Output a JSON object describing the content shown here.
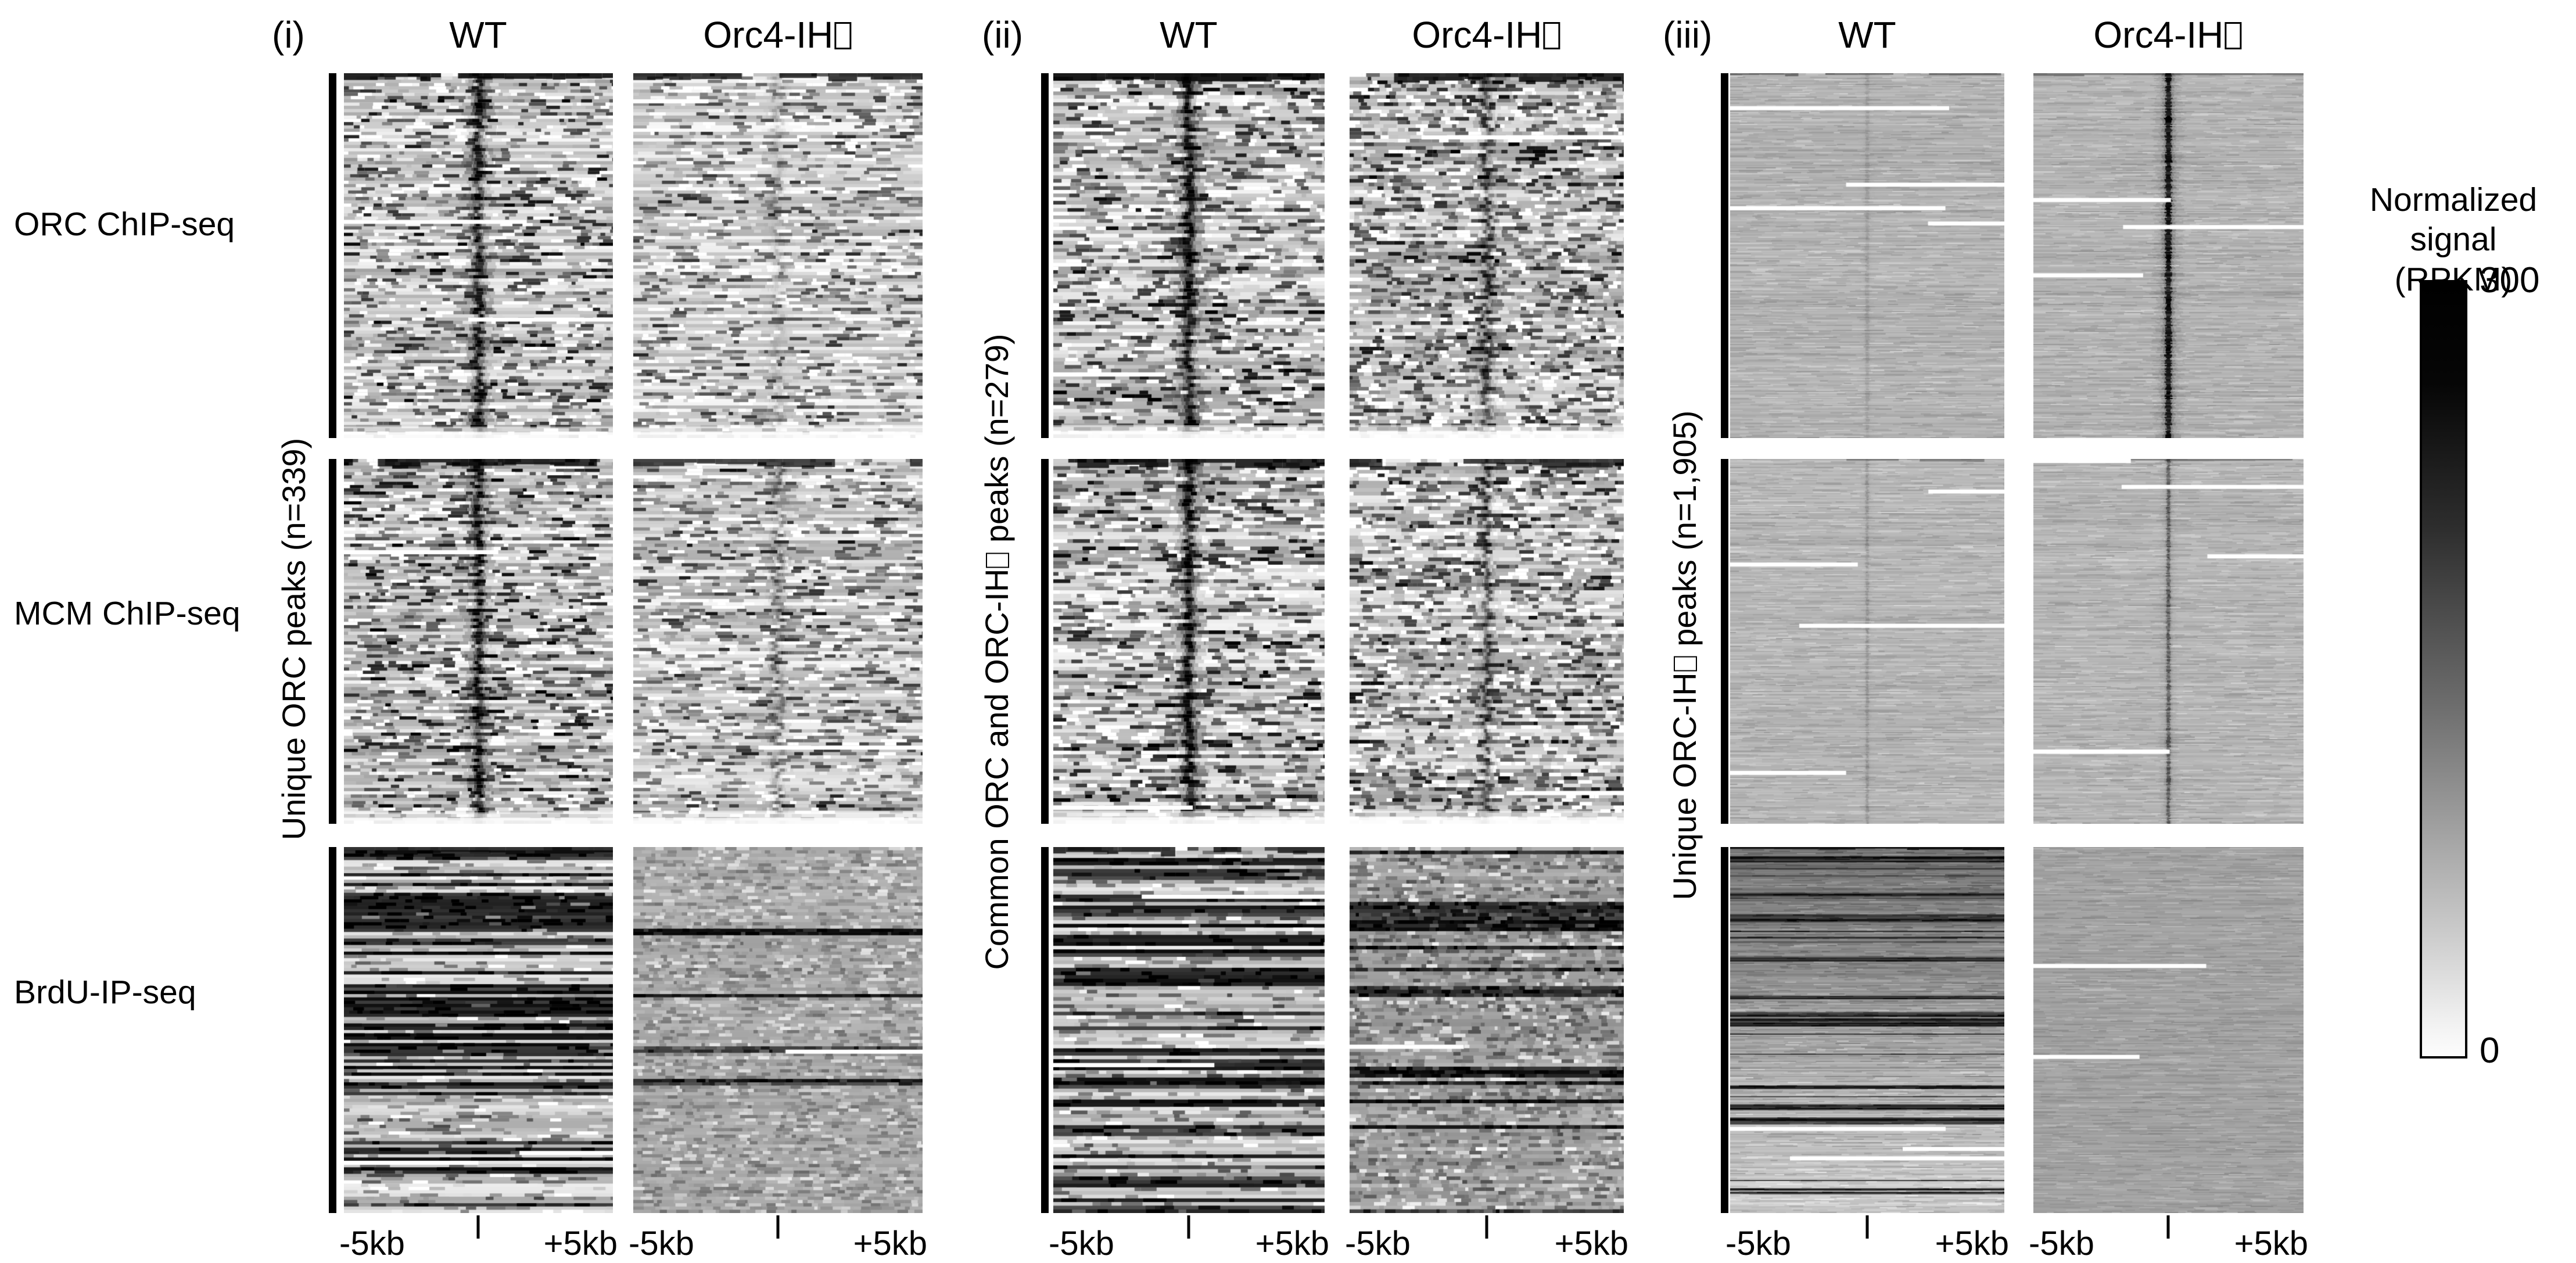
{
  "figure": {
    "background": "#ffffff",
    "text_color": "#000000",
    "panels": [
      {
        "index_label": "(i)",
        "group_label": "Unique ORC peaks (n=339)",
        "n_peaks": 339,
        "columns": [
          {
            "label": "WT"
          },
          {
            "label": "Orc4-IH□"
          }
        ]
      },
      {
        "index_label": "(ii)",
        "group_label": "Common ORC and ORC-IH□ peaks (n=279)",
        "n_peaks": 279,
        "columns": [
          {
            "label": "WT"
          },
          {
            "label": "Orc4-IH□"
          }
        ]
      },
      {
        "index_label": "(iii)",
        "group_label": "Unique ORC-IH□ peaks (n=1,905)",
        "n_peaks": 1905,
        "columns": [
          {
            "label": "WT"
          },
          {
            "label": "Orc4-IH□"
          }
        ]
      }
    ],
    "assay_rows": [
      {
        "label": "ORC ChIP-seq"
      },
      {
        "label": "MCM ChIP-seq"
      },
      {
        "label": "BrdU-IP-seq"
      }
    ],
    "xaxis": {
      "left_label": "-5kb",
      "right_label": "+5kb"
    },
    "colorbar": {
      "title_line1": "Normalized signal",
      "title_line2": "(RPKM)",
      "max_label": "300",
      "min_label": "0",
      "max_color": "#000000",
      "min_color": "#ffffff"
    }
  },
  "chart_data": {
    "type": "heatmap",
    "description": "Read-density heatmaps (ORC ChIP-seq, MCM ChIP-seq, BrdU-IP-seq) over ±5kb windows around peak centers, for WT vs Orc4-IH□ strains, split into unique ORC peaks (n=339), common ORC/ORC-IH□ peaks (n=279) and unique ORC-IH□ peaks (n=1,905). Grayscale: white = 0, black = 300 RPKM.",
    "x_range_kb": [
      -5,
      5
    ],
    "x_tick_labels": [
      "-5kb",
      "center",
      "+5kb"
    ],
    "color_scale": {
      "min": 0,
      "max": 300,
      "units": "RPKM",
      "low_color": "#ffffff",
      "high_color": "#000000"
    },
    "row_groups": [
      {
        "panel": "(i)",
        "label": "Unique ORC peaks (n=339)",
        "n": 339
      },
      {
        "panel": "(ii)",
        "label": "Common ORC and ORC-IH□ peaks (n=279)",
        "n": 279
      },
      {
        "panel": "(iii)",
        "label": "Unique ORC-IH□ peaks (n=1,905)",
        "n": 1905
      }
    ],
    "cells": [
      {
        "panel": "(i)",
        "assay": "ORC ChIP-seq",
        "genotype": "WT",
        "signal": "strong dark line at peak center over speckled background",
        "seed": 11,
        "rows": 112,
        "bg": 0.81,
        "rowVar": 0.34,
        "segW": 11,
        "speckleProb": 0.5,
        "speckleAmp": 0.72,
        "darkBias": 0.72,
        "center": 0.7,
        "centerW": 0.02,
        "centerJitter": 0.012,
        "topDark": 0.85,
        "whiteLines": 2,
        "bottomFade": true
      },
      {
        "panel": "(i)",
        "assay": "ORC ChIP-seq",
        "genotype": "Orc4-IH□",
        "signal": "center signal lost; diffuse noise only",
        "seed": 12,
        "rows": 112,
        "bg": 0.84,
        "rowVar": 0.28,
        "segW": 11,
        "speckleProb": 0.45,
        "speckleAmp": 0.6,
        "darkBias": 0.7,
        "center": 0.1,
        "centerW": 0.015,
        "centerJitter": 0.02,
        "topDark": 0.75,
        "whiteLines": 1,
        "bottomFade": true
      },
      {
        "panel": "(i)",
        "assay": "MCM ChIP-seq",
        "genotype": "WT",
        "signal": "strong dark line at peak center",
        "seed": 13,
        "rows": 112,
        "bg": 0.79,
        "rowVar": 0.34,
        "segW": 11,
        "speckleProb": 0.52,
        "speckleAmp": 0.72,
        "darkBias": 0.74,
        "center": 0.78,
        "centerW": 0.02,
        "centerJitter": 0.012,
        "topDark": 0.8,
        "whiteLines": 1,
        "bottomFade": true
      },
      {
        "panel": "(i)",
        "assay": "MCM ChIP-seq",
        "genotype": "Orc4-IH□",
        "signal": "weak residual center signal",
        "seed": 14,
        "rows": 112,
        "bg": 0.82,
        "rowVar": 0.3,
        "segW": 11,
        "speckleProb": 0.48,
        "speckleAmp": 0.62,
        "darkBias": 0.7,
        "center": 0.26,
        "centerW": 0.014,
        "centerJitter": 0.02,
        "topDark": 0.7,
        "whiteLines": 1,
        "bottomFade": true
      },
      {
        "panel": "(i)",
        "assay": "BrdU-IP-seq",
        "genotype": "WT",
        "signal": "broad dark replication stripes across full window",
        "seed": 15,
        "rows": 112,
        "bg": 0.8,
        "rowVar": 0.28,
        "segW": 14,
        "speckleProb": 0.32,
        "speckleAmp": 0.45,
        "darkBias": 0.8,
        "center": 0,
        "darkRowProb": 0.4,
        "topDark": 0.7,
        "whiteLines": 2
      },
      {
        "panel": "(i)",
        "assay": "BrdU-IP-seq",
        "genotype": "Orc4-IH□",
        "signal": "uniform weak mid-gray signal",
        "seed": 16,
        "rows": 112,
        "bg": 0.67,
        "rowVar": 0.1,
        "segW": 8,
        "speckleProb": 0.55,
        "speckleAmp": 0.22,
        "darkBias": 0.6,
        "center": 0,
        "darkRowProb": 0.04,
        "whiteLines": 1
      },
      {
        "panel": "(ii)",
        "assay": "ORC ChIP-seq",
        "genotype": "WT",
        "signal": "strong dark line at peak center",
        "seed": 21,
        "rows": 100,
        "bg": 0.8,
        "rowVar": 0.34,
        "segW": 11,
        "speckleProb": 0.5,
        "speckleAmp": 0.72,
        "darkBias": 0.74,
        "center": 0.85,
        "centerW": 0.022,
        "centerJitter": 0.012,
        "topDark": 0.85,
        "whiteLines": 1,
        "bottomFade": true
      },
      {
        "panel": "(ii)",
        "assay": "ORC ChIP-seq",
        "genotype": "Orc4-IH□",
        "signal": "moderate wiggly center line retained",
        "seed": 22,
        "rows": 100,
        "bg": 0.77,
        "rowVar": 0.3,
        "segW": 9,
        "speckleProb": 0.58,
        "speckleAmp": 0.66,
        "darkBias": 0.72,
        "center": 0.5,
        "centerW": 0.016,
        "centerJitter": 0.018,
        "topDark": 0.8,
        "whiteLines": 1,
        "bottomFade": true
      },
      {
        "panel": "(ii)",
        "assay": "MCM ChIP-seq",
        "genotype": "WT",
        "signal": "strong dark line at peak center",
        "seed": 23,
        "rows": 100,
        "bg": 0.79,
        "rowVar": 0.34,
        "segW": 11,
        "speckleProb": 0.52,
        "speckleAmp": 0.72,
        "darkBias": 0.74,
        "center": 0.88,
        "centerW": 0.022,
        "centerJitter": 0.012,
        "topDark": 0.8,
        "whiteLines": 1,
        "bottomFade": true
      },
      {
        "panel": "(ii)",
        "assay": "MCM ChIP-seq",
        "genotype": "Orc4-IH□",
        "signal": "moderate center line",
        "seed": 24,
        "rows": 100,
        "bg": 0.78,
        "rowVar": 0.3,
        "segW": 9,
        "speckleProb": 0.56,
        "speckleAmp": 0.64,
        "darkBias": 0.72,
        "center": 0.42,
        "centerW": 0.014,
        "centerJitter": 0.016,
        "topDark": 0.7,
        "whiteLines": 1,
        "bottomFade": true
      },
      {
        "panel": "(ii)",
        "assay": "BrdU-IP-seq",
        "genotype": "WT",
        "signal": "heavy dark replication stripes",
        "seed": 25,
        "rows": 100,
        "bg": 0.79,
        "rowVar": 0.28,
        "segW": 14,
        "speckleProb": 0.32,
        "speckleAmp": 0.45,
        "darkBias": 0.8,
        "center": 0,
        "darkRowProb": 0.46,
        "topDark": 0.75,
        "whiteLines": 2
      },
      {
        "panel": "(ii)",
        "assay": "BrdU-IP-seq",
        "genotype": "Orc4-IH□",
        "signal": "gray background with sparse faint stripes",
        "seed": 26,
        "rows": 100,
        "bg": 0.64,
        "rowVar": 0.14,
        "segW": 8,
        "speckleProb": 0.55,
        "speckleAmp": 0.3,
        "darkBias": 0.65,
        "center": 0,
        "darkRowProb": 0.1,
        "whiteLines": 1
      },
      {
        "panel": "(iii)",
        "assay": "ORC ChIP-seq",
        "genotype": "WT",
        "signal": "smooth gray, very faint center line, white dropout lines",
        "seed": 31,
        "rows": 310,
        "bg": 0.705,
        "rowVar": 0.09,
        "segW": 16,
        "speckleProb": 0.5,
        "speckleAmp": 0.09,
        "darkBias": 0.6,
        "center": 0.09,
        "centerW": 0.012,
        "centerJitter": 0.002,
        "halo": 0.4,
        "topDark": 0.4,
        "whiteLines": 4
      },
      {
        "panel": "(iii)",
        "assay": "ORC ChIP-seq",
        "genotype": "Orc4-IH□",
        "signal": "strong narrow continuous dark line at center",
        "seed": 32,
        "rows": 310,
        "bg": 0.705,
        "rowVar": 0.09,
        "segW": 16,
        "speckleProb": 0.5,
        "speckleAmp": 0.09,
        "darkBias": 0.6,
        "center": 0.85,
        "centerW": 0.02,
        "centerJitter": 0.0015,
        "centerMin": 0.8,
        "halo": 0.4,
        "topDark": 0.35,
        "whiteLines": 3
      },
      {
        "panel": "(iii)",
        "assay": "MCM ChIP-seq",
        "genotype": "WT",
        "signal": "smooth gray, faint center line",
        "seed": 33,
        "rows": 310,
        "bg": 0.715,
        "rowVar": 0.09,
        "segW": 16,
        "speckleProb": 0.5,
        "speckleAmp": 0.09,
        "darkBias": 0.6,
        "center": 0.13,
        "centerW": 0.01,
        "centerJitter": 0.002,
        "halo": 0.4,
        "topDark": 0.3,
        "whiteLines": 4
      },
      {
        "panel": "(iii)",
        "assay": "MCM ChIP-seq",
        "genotype": "Orc4-IH□",
        "signal": "moderate narrow center line, white dropout lines",
        "seed": 34,
        "rows": 310,
        "bg": 0.715,
        "rowVar": 0.09,
        "segW": 16,
        "speckleProb": 0.5,
        "speckleAmp": 0.09,
        "darkBias": 0.6,
        "center": 0.38,
        "centerW": 0.012,
        "centerJitter": 0.002,
        "centerMin": 0.6,
        "halo": 0.4,
        "topDark": 0.3,
        "whiteLines": 5
      },
      {
        "panel": "(iii)",
        "assay": "BrdU-IP-seq",
        "genotype": "WT",
        "signal": "dark at top graded to light at bottom",
        "seed": 35,
        "rows": 310,
        "grad": [
          0.44,
          0.82
        ],
        "rowVar": 0.13,
        "segW": 16,
        "speckleProb": 0.4,
        "speckleAmp": 0.12,
        "darkBias": 0.7,
        "center": 0,
        "darkRowProb": 0.1,
        "topDark": 0.85,
        "whiteLines": 3
      },
      {
        "panel": "(iii)",
        "assay": "BrdU-IP-seq",
        "genotype": "Orc4-IH□",
        "signal": "uniform medium gray",
        "seed": 36,
        "rows": 310,
        "bg": 0.635,
        "rowVar": 0.07,
        "segW": 16,
        "speckleProb": 0.5,
        "speckleAmp": 0.08,
        "darkBias": 0.6,
        "center": 0,
        "whiteLines": 2
      }
    ]
  }
}
